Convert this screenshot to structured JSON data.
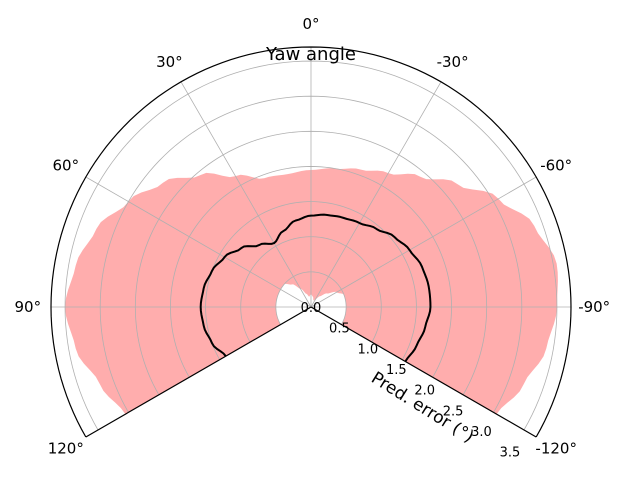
{
  "chart_data": {
    "type": "polar-area",
    "title": "Yaw angle",
    "rlabel": "Pred. error (°)",
    "theta_ticks": [
      {
        "deg": 0,
        "label": "0°"
      },
      {
        "deg": 30,
        "label": "30°"
      },
      {
        "deg": -30,
        "label": "-30°"
      },
      {
        "deg": 60,
        "label": "60°"
      },
      {
        "deg": -60,
        "label": "-60°"
      },
      {
        "deg": 90,
        "label": "90°"
      },
      {
        "deg": -90,
        "label": "-90°"
      },
      {
        "deg": 120,
        "label": "120°"
      },
      {
        "deg": -120,
        "label": "-120°"
      }
    ],
    "theta_range": [
      -120,
      120
    ],
    "r_ticks": [
      0.0,
      0.5,
      1.0,
      1.5,
      2.0,
      2.5,
      3.0,
      3.5
    ],
    "r_tick_labels": [
      "0.0",
      "0.5",
      "1.0",
      "1.5",
      "2.0",
      "2.5",
      "3.0",
      "3.5"
    ],
    "rlim": [
      0,
      3.7
    ],
    "grid": true,
    "band": {
      "color": "#ff8a8a",
      "angles": [
        -120,
        -110,
        -100,
        -90,
        -80,
        -70,
        -60,
        -50,
        -40,
        -30,
        -20,
        -10,
        0,
        10,
        20,
        30,
        40,
        50,
        60,
        70,
        80,
        90,
        100,
        110,
        120
      ],
      "upper": [
        3.05,
        3.22,
        3.4,
        3.5,
        3.55,
        3.38,
        3.08,
        2.72,
        2.42,
        2.2,
        2.08,
        2.0,
        1.95,
        1.92,
        1.95,
        2.15,
        2.45,
        2.75,
        3.0,
        3.25,
        3.4,
        3.5,
        3.4,
        3.2,
        3.05
      ],
      "lower": [
        0.5,
        0.5,
        0.5,
        0.5,
        0.5,
        0.5,
        0.42,
        0.3,
        0.2,
        0.12,
        0.1,
        0.15,
        0.18,
        0.15,
        0.2,
        0.3,
        0.42,
        0.5,
        0.5,
        0.5,
        0.5,
        0.5,
        0.5,
        0.5,
        0.5
      ]
    },
    "median": {
      "color": "#000000",
      "angles": [
        -120,
        -110,
        -100,
        -90,
        -80,
        -70,
        -60,
        -50,
        -40,
        -30,
        -20,
        -10,
        0,
        10,
        20,
        30,
        40,
        50,
        60,
        70,
        80,
        90,
        100,
        110,
        120
      ],
      "values": [
        1.55,
        1.6,
        1.65,
        1.7,
        1.7,
        1.68,
        1.62,
        1.55,
        1.45,
        1.38,
        1.35,
        1.33,
        1.3,
        1.25,
        1.15,
        1.05,
        1.15,
        1.3,
        1.42,
        1.5,
        1.55,
        1.57,
        1.55,
        1.5,
        1.4
      ]
    }
  }
}
